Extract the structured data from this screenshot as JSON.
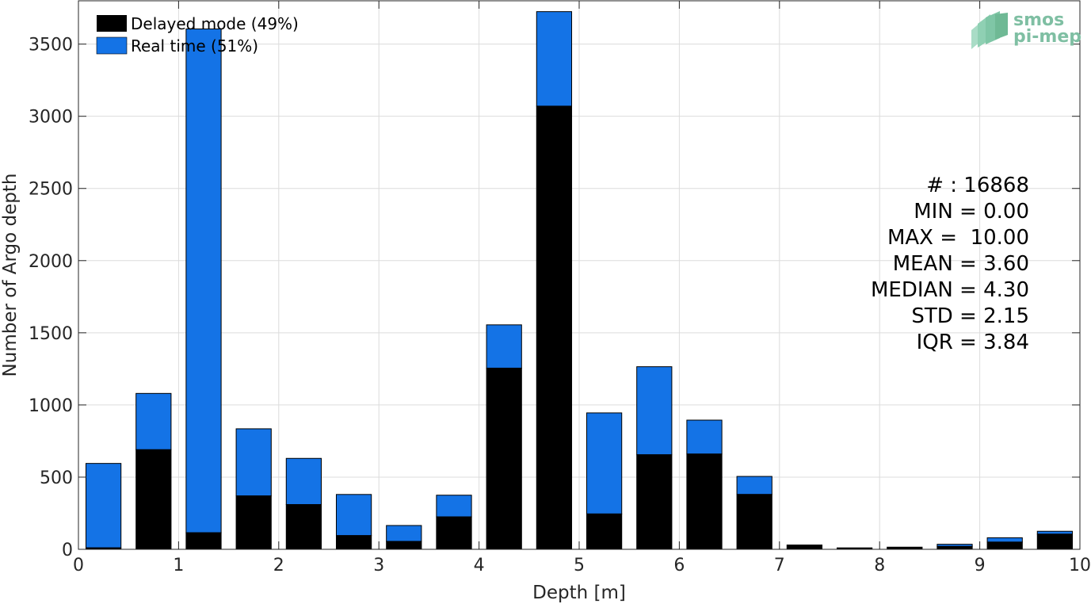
{
  "chart_data": {
    "type": "bar",
    "stacked": true,
    "xlabel": "Depth [m]",
    "ylabel": "Number of Argo depth",
    "xlim": [
      0,
      10
    ],
    "ylim": [
      0,
      3800
    ],
    "x_ticks": [
      0,
      1,
      2,
      3,
      4,
      5,
      6,
      7,
      8,
      9,
      10
    ],
    "y_ticks": [
      0,
      500,
      1000,
      1500,
      2000,
      2500,
      3000,
      3500
    ],
    "grid": true,
    "legend_position": "top-left",
    "bin_width": 0.5,
    "x": [
      0.25,
      0.75,
      1.25,
      1.75,
      2.25,
      2.75,
      3.25,
      3.75,
      4.25,
      4.75,
      5.25,
      5.75,
      6.25,
      6.75,
      7.25,
      7.75,
      8.25,
      8.75,
      9.25,
      9.75
    ],
    "series": [
      {
        "name": "Delayed mode (49%)",
        "color": "#000000",
        "values": [
          10,
          690,
          115,
          370,
          310,
          95,
          55,
          225,
          1255,
          3070,
          245,
          655,
          660,
          380,
          30,
          10,
          15,
          20,
          50,
          105
        ]
      },
      {
        "name": "Real time (51%)",
        "color": "#1473e6",
        "values": [
          585,
          390,
          3490,
          465,
          320,
          285,
          110,
          150,
          300,
          655,
          700,
          610,
          235,
          125,
          0,
          0,
          0,
          15,
          30,
          20
        ]
      }
    ],
    "stats": [
      "# : 16868",
      "MIN = 0.00",
      "MAX =  10.00",
      "MEAN = 3.60",
      "MEDIAN = 4.30",
      "STD = 2.15",
      "IQR = 3.84"
    ],
    "logo": {
      "line1": "smos",
      "line2": "pi-mep",
      "color": "#7fbfa3"
    }
  }
}
